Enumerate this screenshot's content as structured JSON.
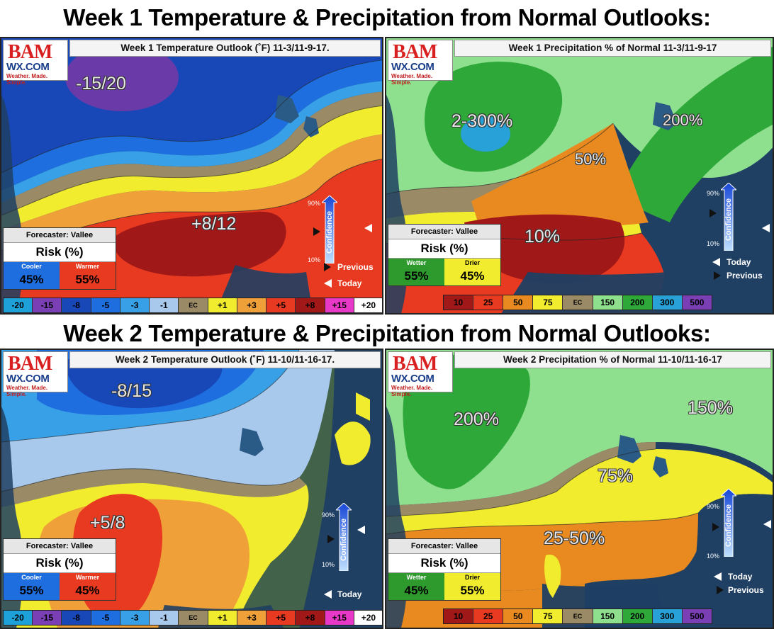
{
  "titles": {
    "week1": "Week 1 Temperature & Precipitation from Normal Outlooks:",
    "week2": "Week 2 Temperature & Precipitation from Normal Outlooks:"
  },
  "logo": {
    "line1": "BAM",
    "line2": "WX.COM",
    "tagline": "Weather. Made. Simple."
  },
  "panels": {
    "w1_temp": {
      "title": "Week 1 Temperature Outlook (˚F) 11-3/11-9-17.",
      "labels": [
        "-15/20",
        "+8/12"
      ],
      "risk": {
        "forecaster": "Forecaster: Vallee",
        "heading": "Risk (%)",
        "left_label": "Cooler",
        "left_value": "45%",
        "right_label": "Warmer",
        "right_value": "55%"
      }
    },
    "w1_precip": {
      "title": "Week 1 Precipitation % of Normal 11-3/11-9-17",
      "labels": [
        "2-300%",
        "200%",
        "50%",
        "10%"
      ],
      "risk": {
        "forecaster": "Forecaster: Vallee",
        "heading": "Risk (%)",
        "left_label": "Wetter",
        "left_value": "55%",
        "right_label": "Drier",
        "right_value": "45%"
      }
    },
    "w2_temp": {
      "title": "Week 2 Temperature Outlook (˚F) 11-10/11-16-17.",
      "labels": [
        "-8/15",
        "+5/8"
      ],
      "risk": {
        "forecaster": "Forecaster: Vallee",
        "heading": "Risk (%)",
        "left_label": "Cooler",
        "left_value": "55%",
        "right_label": "Warmer",
        "right_value": "45%"
      }
    },
    "w2_precip": {
      "title": "Week 2 Precipitation % of Normal 11-10/11-16-17",
      "labels": [
        "200%",
        "150%",
        "75%",
        "25-50%"
      ],
      "risk": {
        "forecaster": "Forecaster: Vallee",
        "heading": "Risk (%)",
        "left_label": "Wetter",
        "left_value": "45%",
        "right_label": "Drier",
        "right_value": "55%"
      }
    }
  },
  "confidence": {
    "label": "Confidence",
    "high": "90%",
    "low": "10%",
    "today": "Today",
    "previous": "Previous"
  },
  "temp_scale": [
    {
      "label": "-20",
      "color": "#1ea0d8",
      "text": "#000"
    },
    {
      "label": "-15",
      "color": "#7a3fb5",
      "text": "#000"
    },
    {
      "label": "-8",
      "color": "#1848b8",
      "text": "#000"
    },
    {
      "label": "-5",
      "color": "#1e6ee0",
      "text": "#000"
    },
    {
      "label": "-3",
      "color": "#38a0e6",
      "text": "#000"
    },
    {
      "label": "-1",
      "color": "#a8c8ec",
      "text": "#000"
    },
    {
      "label": "EC",
      "color": "#9a8a66",
      "text": "#000"
    },
    {
      "label": "+1",
      "color": "#f2ec2e",
      "text": "#000"
    },
    {
      "label": "+3",
      "color": "#f0a038",
      "text": "#000"
    },
    {
      "label": "+5",
      "color": "#e83a20",
      "text": "#000"
    },
    {
      "label": "+8",
      "color": "#a01818",
      "text": "#000"
    },
    {
      "label": "+15",
      "color": "#e838c8",
      "text": "#000"
    },
    {
      "label": "+20",
      "color": "#ffffff",
      "text": "#000"
    }
  ],
  "precip_scale": [
    {
      "label": "10",
      "color": "#a01818",
      "text": "#000"
    },
    {
      "label": "25",
      "color": "#e83a20",
      "text": "#000"
    },
    {
      "label": "50",
      "color": "#e88a20",
      "text": "#000"
    },
    {
      "label": "75",
      "color": "#f2ec2e",
      "text": "#000"
    },
    {
      "label": "EC",
      "color": "#9a8a66",
      "text": "#000"
    },
    {
      "label": "150",
      "color": "#8ee08e",
      "text": "#000"
    },
    {
      "label": "200",
      "color": "#2fa83a",
      "text": "#000"
    },
    {
      "label": "300",
      "color": "#28a0d8",
      "text": "#000"
    },
    {
      "label": "500",
      "color": "#7a3fb5",
      "text": "#000"
    }
  ],
  "colors": {
    "ocean": "#1f3f63",
    "cool_risk": "#1e6ee0",
    "warm_risk": "#e83a20",
    "wet_risk": "#2e9a2e",
    "dry_risk": "#f2ec2e"
  }
}
